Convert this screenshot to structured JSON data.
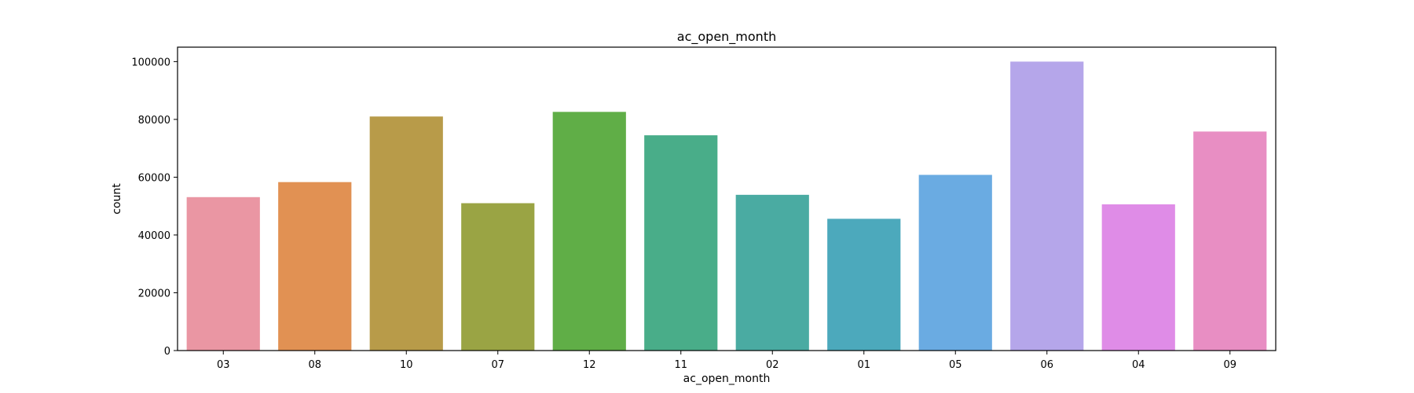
{
  "chart_data": {
    "type": "bar",
    "title": "ac_open_month",
    "xlabel": "ac_open_month",
    "ylabel": "count",
    "categories": [
      "03",
      "08",
      "10",
      "07",
      "12",
      "11",
      "02",
      "01",
      "05",
      "06",
      "04",
      "09"
    ],
    "values": [
      53100,
      58300,
      81000,
      51000,
      82600,
      74500,
      53900,
      45600,
      60800,
      100000,
      50600,
      75800
    ],
    "colors": [
      "#ea96a3",
      "#e19153",
      "#b89b49",
      "#9aa444",
      "#60ae47",
      "#49ad89",
      "#4aaba2",
      "#4ca9bc",
      "#6aabe2",
      "#b5a6ea",
      "#df8ce7",
      "#e88ec3"
    ],
    "yticks": [
      0,
      20000,
      40000,
      60000,
      80000,
      100000
    ],
    "ytick_labels": [
      "0",
      "20000",
      "40000",
      "60000",
      "80000",
      "100000"
    ],
    "ylim": [
      0,
      105000
    ],
    "grid": false,
    "legend": "none"
  }
}
